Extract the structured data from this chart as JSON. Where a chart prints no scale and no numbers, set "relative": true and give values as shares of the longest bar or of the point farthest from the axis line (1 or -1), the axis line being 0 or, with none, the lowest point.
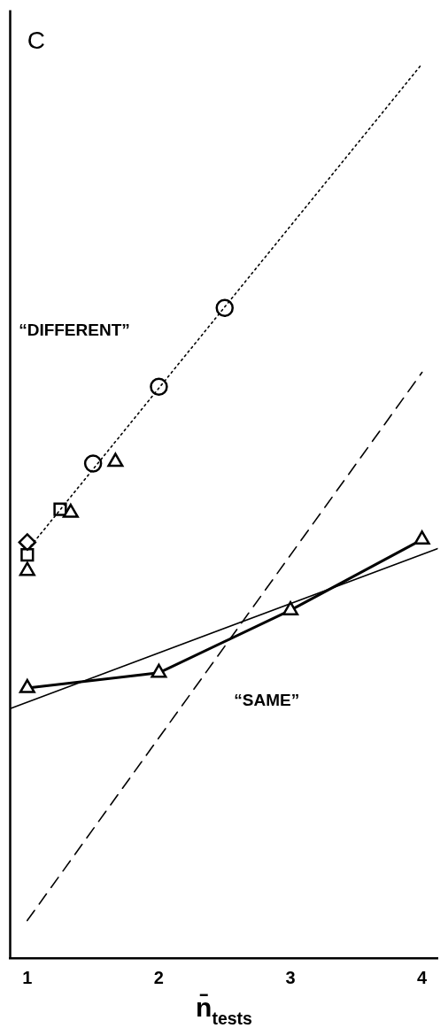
{
  "chart_data": {
    "type": "scatter",
    "relative": true,
    "xlabel": "n̄$_{tests}$",
    "xlim": [
      0.87,
      4.12
    ],
    "xticks": [
      1,
      2,
      3,
      4
    ],
    "grid": false,
    "legend": false,
    "annotations": [
      "C",
      "“DIFFERENT”",
      "“SAME”"
    ],
    "series": [
      {
        "type": "line",
        "color": "#000000",
        "line_style": "dotted",
        "marker": "none",
        "x": [
          1,
          4
        ],
        "values": [
          0.456,
          1.0
        ]
      },
      {
        "type": "line",
        "color": "#000000",
        "line_style": "dashed",
        "marker": "none",
        "x": [
          1,
          4
        ],
        "values": [
          0.042,
          0.655
        ]
      },
      {
        "type": "line",
        "color": "#000000",
        "line_style": "solid",
        "marker": "none",
        "x": [
          0.87,
          4.12
        ],
        "values": [
          0.279,
          0.458
        ]
      },
      {
        "type": "line",
        "color": "#000000",
        "line_style": "solid",
        "marker": "triangle",
        "x": [
          1,
          2,
          3,
          4
        ],
        "values": [
          0.302,
          0.319,
          0.389,
          0.468
        ]
      },
      {
        "color": "#000000",
        "marker": "circle",
        "x": [
          1.5,
          2,
          2.5
        ],
        "values": [
          0.553,
          0.639,
          0.727
        ]
      },
      {
        "color": "#000000",
        "marker": "triangle",
        "x": [
          1.33,
          1.67
        ],
        "values": [
          0.498,
          0.555
        ]
      },
      {
        "color": "#000000",
        "marker": "square",
        "x": [
          1.25,
          1
        ],
        "values": [
          0.502,
          0.451
        ]
      },
      {
        "color": "#000000",
        "marker": "diamond",
        "x": [
          1
        ],
        "values": [
          0.465
        ]
      },
      {
        "color": "#000000",
        "marker": "triangle",
        "x": [
          1
        ],
        "values": [
          0.433
        ]
      }
    ]
  }
}
